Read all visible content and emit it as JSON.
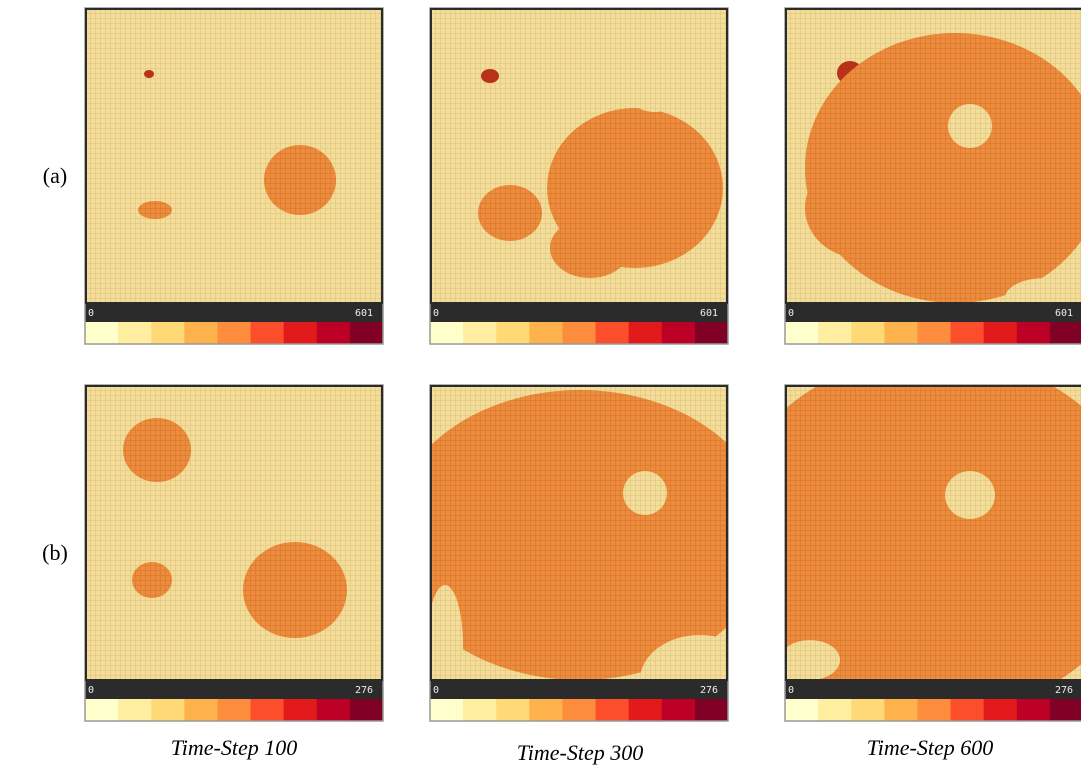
{
  "rows": [
    {
      "label": "(a)",
      "panels": [
        {
          "min": 0,
          "max": 601
        },
        {
          "min": 0,
          "max": 601
        },
        {
          "min": 0,
          "max": 601
        }
      ]
    },
    {
      "label": "(b)",
      "panels": [
        {
          "min": 0,
          "max": 276
        },
        {
          "min": 0,
          "max": 276
        },
        {
          "min": 0,
          "max": 276
        }
      ]
    }
  ],
  "columns": [
    "Time-Step 100",
    "Time-Step 300",
    "Time-Step 600"
  ]
}
